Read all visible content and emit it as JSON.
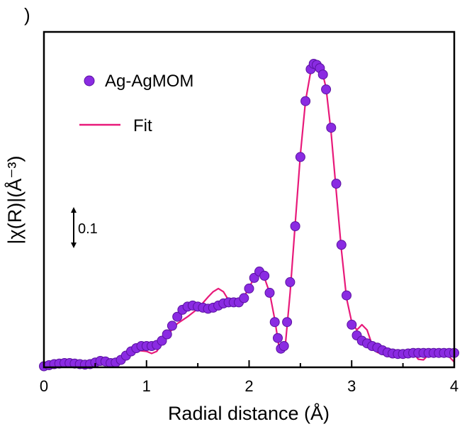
{
  "panel_mark": ")",
  "chart_data": {
    "type": "line",
    "xlabel": "Radial distance (Å)",
    "ylabel": "|χ(R)|(Å⁻³)",
    "xlim": [
      0,
      4
    ],
    "ylim": [
      0,
      0.63
    ],
    "xticks": [
      0,
      1,
      2,
      3,
      4
    ],
    "x_minor_ticks": [
      0.5,
      1.5,
      2.5,
      3.5
    ],
    "yticks_shown": false,
    "grid": false,
    "legend_position": "top-left",
    "scale_bar": {
      "label": "0.1",
      "value": 0.1
    },
    "series": [
      {
        "name": "Ag-AgMOM",
        "style": "markers",
        "color": "#8a2be2",
        "x": [
          0.0,
          0.05,
          0.1,
          0.15,
          0.2,
          0.25,
          0.3,
          0.35,
          0.4,
          0.45,
          0.5,
          0.55,
          0.6,
          0.65,
          0.7,
          0.75,
          0.8,
          0.85,
          0.9,
          0.95,
          1.0,
          1.05,
          1.1,
          1.15,
          1.2,
          1.25,
          1.3,
          1.35,
          1.4,
          1.45,
          1.5,
          1.55,
          1.6,
          1.65,
          1.7,
          1.75,
          1.8,
          1.85,
          1.9,
          1.95,
          2.0,
          2.05,
          2.1,
          2.15,
          2.2,
          2.25,
          2.28,
          2.31,
          2.34,
          2.37,
          2.4,
          2.45,
          2.5,
          2.55,
          2.6,
          2.63,
          2.66,
          2.69,
          2.72,
          2.75,
          2.8,
          2.85,
          2.9,
          2.95,
          3.0,
          3.05,
          3.1,
          3.15,
          3.2,
          3.25,
          3.3,
          3.35,
          3.4,
          3.45,
          3.5,
          3.55,
          3.6,
          3.65,
          3.7,
          3.75,
          3.8,
          3.85,
          3.9,
          3.95,
          4.0
        ],
        "y": [
          0.002,
          0.004,
          0.006,
          0.007,
          0.008,
          0.008,
          0.007,
          0.006,
          0.005,
          0.006,
          0.009,
          0.012,
          0.011,
          0.008,
          0.009,
          0.014,
          0.022,
          0.03,
          0.036,
          0.04,
          0.04,
          0.04,
          0.042,
          0.05,
          0.062,
          0.078,
          0.095,
          0.108,
          0.114,
          0.116,
          0.114,
          0.112,
          0.11,
          0.112,
          0.116,
          0.12,
          0.122,
          0.122,
          0.122,
          0.13,
          0.148,
          0.168,
          0.18,
          0.172,
          0.14,
          0.085,
          0.055,
          0.035,
          0.04,
          0.085,
          0.16,
          0.265,
          0.395,
          0.5,
          0.56,
          0.57,
          0.568,
          0.562,
          0.55,
          0.522,
          0.45,
          0.345,
          0.23,
          0.135,
          0.08,
          0.06,
          0.05,
          0.045,
          0.04,
          0.037,
          0.032,
          0.028,
          0.026,
          0.025,
          0.025,
          0.026,
          0.027,
          0.027,
          0.027,
          0.027,
          0.027,
          0.027,
          0.027,
          0.027,
          0.027
        ]
      },
      {
        "name": "Fit",
        "style": "line",
        "color": "#e8197a",
        "x": [
          0.0,
          0.1,
          0.2,
          0.3,
          0.4,
          0.5,
          0.6,
          0.7,
          0.8,
          0.9,
          1.0,
          1.05,
          1.1,
          1.15,
          1.2,
          1.3,
          1.4,
          1.5,
          1.6,
          1.65,
          1.7,
          1.75,
          1.8,
          1.85,
          1.9,
          1.95,
          2.0,
          2.05,
          2.1,
          2.15,
          2.2,
          2.25,
          2.3,
          2.35,
          2.4,
          2.45,
          2.5,
          2.55,
          2.6,
          2.65,
          2.7,
          2.75,
          2.8,
          2.85,
          2.9,
          2.95,
          3.0,
          3.05,
          3.1,
          3.15,
          3.2,
          3.25,
          3.3,
          3.35,
          3.4,
          3.45,
          3.5,
          3.55,
          3.6,
          3.65,
          3.7,
          3.75,
          3.8,
          3.85,
          3.9,
          3.95,
          4.0
        ],
        "y": [
          0.003,
          0.006,
          0.008,
          0.006,
          0.006,
          0.01,
          0.009,
          0.011,
          0.023,
          0.032,
          0.03,
          0.026,
          0.03,
          0.045,
          0.06,
          0.082,
          0.095,
          0.11,
          0.132,
          0.142,
          0.148,
          0.142,
          0.126,
          0.12,
          0.122,
          0.132,
          0.15,
          0.168,
          0.178,
          0.168,
          0.14,
          0.09,
          0.028,
          0.035,
          0.14,
          0.27,
          0.4,
          0.5,
          0.555,
          0.575,
          0.565,
          0.525,
          0.44,
          0.33,
          0.22,
          0.13,
          0.085,
          0.07,
          0.08,
          0.07,
          0.042,
          0.028,
          0.025,
          0.029,
          0.03,
          0.026,
          0.024,
          0.027,
          0.028,
          0.015,
          0.014,
          0.024,
          0.026,
          0.022,
          0.021,
          0.02,
          0.01
        ]
      }
    ]
  }
}
